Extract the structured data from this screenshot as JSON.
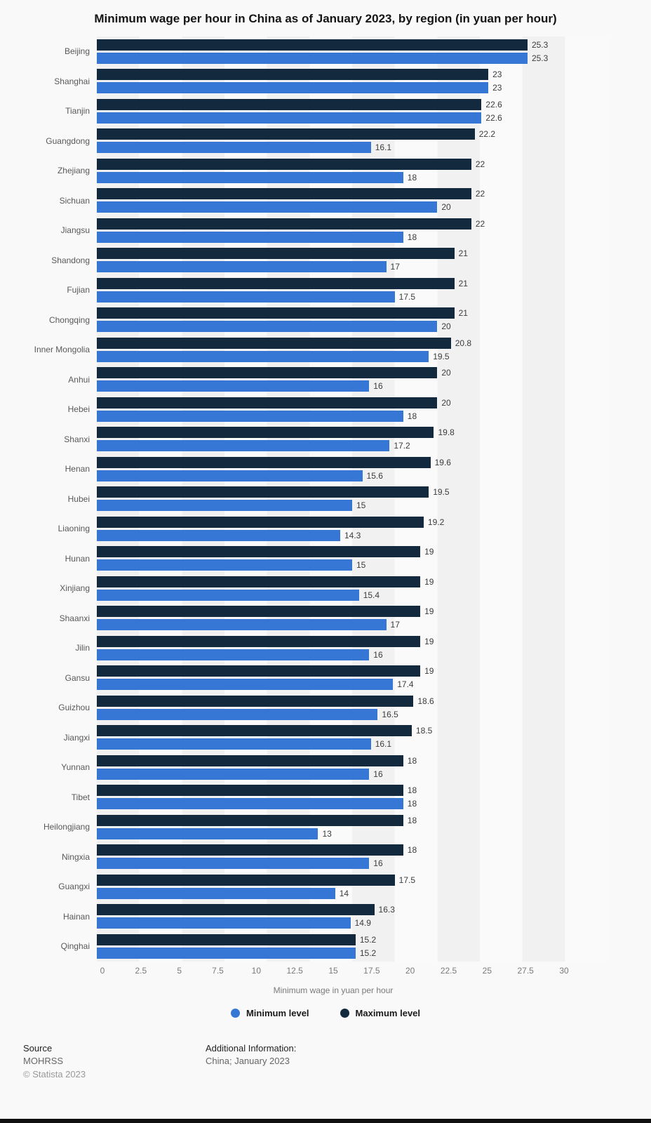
{
  "title": "Minimum wage per hour in China as of January 2023, by region (in yuan per hour)",
  "chart_data": {
    "type": "bar",
    "orientation": "horizontal",
    "title": "Minimum wage per hour in China as of January 2023, by region (in yuan per hour)",
    "xlabel": "Minimum wage in yuan per hour",
    "ylabel": "",
    "xlim": [
      0,
      30
    ],
    "xticks": [
      0,
      2.5,
      5,
      7.5,
      10,
      12.5,
      15,
      17.5,
      20,
      22.5,
      25,
      27.5,
      30
    ],
    "grid": "vertical-bands",
    "legend_position": "bottom",
    "categories": [
      "Beijing",
      "Shanghai",
      "Tianjin",
      "Guangdong",
      "Zhejiang",
      "Sichuan",
      "Jiangsu",
      "Shandong",
      "Fujian",
      "Chongqing",
      "Inner Mongolia",
      "Anhui",
      "Hebei",
      "Shanxi",
      "Henan",
      "Hubei",
      "Liaoning",
      "Hunan",
      "Xinjiang",
      "Shaanxi",
      "Jilin",
      "Gansu",
      "Guizhou",
      "Jiangxi",
      "Yunnan",
      "Tibet",
      "Heilongjiang",
      "Ningxia",
      "Guangxi",
      "Hainan",
      "Qinghai"
    ],
    "series": [
      {
        "name": "Maximum level",
        "color": "#13293e",
        "values": [
          25.3,
          23,
          22.6,
          22.2,
          22,
          22,
          22,
          21,
          21,
          21,
          20.8,
          20,
          20,
          19.8,
          19.6,
          19.5,
          19.2,
          19,
          19,
          19,
          19,
          19,
          18.6,
          18.5,
          18,
          18,
          18,
          18,
          17.5,
          16.3,
          15.2
        ]
      },
      {
        "name": "Minimum level",
        "color": "#3677d6",
        "values": [
          25.3,
          23,
          22.6,
          16.1,
          18,
          20,
          18,
          17,
          17.5,
          20,
          19.5,
          16,
          18,
          17.2,
          15.6,
          15,
          14.3,
          15,
          15.4,
          17,
          16,
          17.4,
          16.5,
          16.1,
          16,
          18,
          13,
          16,
          14,
          14.9,
          15.2
        ]
      }
    ]
  },
  "legend": [
    {
      "label": "Minimum level",
      "color": "#3677d6"
    },
    {
      "label": "Maximum level",
      "color": "#13293e"
    }
  ],
  "footer": {
    "source_label": "Source",
    "source_name": "MOHRSS",
    "copyright": "© Statista 2023",
    "additional_label": "Additional Information:",
    "additional_value": "China; January 2023"
  }
}
